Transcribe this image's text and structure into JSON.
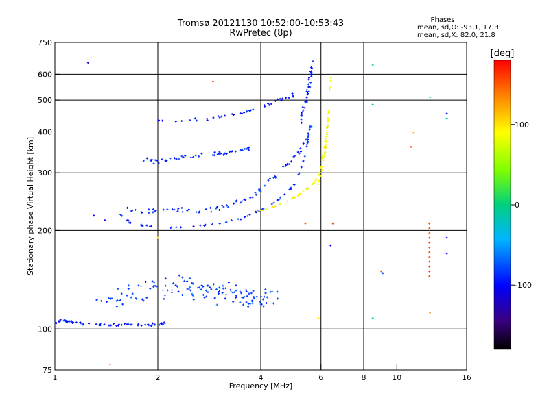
{
  "chart_data": {
    "type": "scatter",
    "title": "Tromsø 20121130 10:52:00-10:53:43",
    "subtitle": "RwPretec (8p)",
    "xlabel": "Frequency [MHz]",
    "ylabel": "Stationary phase Virtual Height [km]",
    "x_scale": "log",
    "y_scale": "log",
    "xlim": [
      1,
      16
    ],
    "ylim": [
      75,
      750
    ],
    "x_ticks": [
      1,
      2,
      4,
      6,
      8,
      10,
      16
    ],
    "x_tick_labels": [
      "1",
      "2",
      "4",
      "6",
      "8",
      "10",
      "16"
    ],
    "x_gridlines": [
      2,
      4,
      6,
      8
    ],
    "y_ticks": [
      75,
      100,
      200,
      300,
      400,
      500,
      600,
      750
    ],
    "y_tick_labels": [
      "75",
      "100",
      "200",
      "300",
      "400",
      "500",
      "600",
      "750"
    ],
    "y_gridlines": [
      100,
      200,
      300,
      400,
      500,
      600
    ],
    "grid": true,
    "colorbar": {
      "label": "[deg]",
      "range": [
        -180,
        180
      ],
      "ticks": [
        100,
        0,
        -100
      ],
      "tick_labels": [
        "100",
        "0",
        "-100"
      ],
      "colormap": "rainbow"
    },
    "stats": {
      "heading": "Phases",
      "line1": "mean, sd,O: -93.1, 17.3",
      "line2": "mean, sd,X:  82.0, 21.8"
    },
    "traces": [
      {
        "name": "",
        "phase": -95,
        "jitter": 0.006,
        "density": 60,
        "points": [
          [
            1.0,
            104
          ],
          [
            1.05,
            107
          ],
          [
            1.1,
            105
          ],
          [
            1.2,
            104
          ],
          [
            1.4,
            103
          ],
          [
            1.6,
            103
          ],
          [
            1.8,
            103
          ],
          [
            2.0,
            103
          ],
          [
            2.1,
            104
          ]
        ]
      },
      {
        "name": "",
        "phase": -90,
        "jitter": 0.004,
        "density": 70,
        "points": [
          [
            1.55,
            224
          ],
          [
            1.65,
            212
          ],
          [
            1.8,
            207
          ],
          [
            2.0,
            205
          ],
          [
            2.4,
            205
          ],
          [
            2.8,
            208
          ],
          [
            3.2,
            213
          ],
          [
            3.6,
            219
          ],
          [
            3.9,
            228
          ],
          [
            4.2,
            236
          ],
          [
            4.5,
            248
          ],
          [
            4.8,
            262
          ],
          [
            5.0,
            275
          ],
          [
            5.2,
            300
          ],
          [
            5.4,
            340
          ],
          [
            5.5,
            380
          ],
          [
            5.6,
            430
          ]
        ]
      },
      {
        "name": "",
        "phase": -88,
        "jitter": 0.012,
        "density": 80,
        "points": [
          [
            1.6,
            232
          ],
          [
            1.8,
            227
          ],
          [
            2.0,
            230
          ],
          [
            2.3,
            232
          ],
          [
            2.6,
            228
          ],
          [
            2.9,
            232
          ],
          [
            3.2,
            238
          ],
          [
            3.5,
            245
          ],
          [
            3.8,
            255
          ],
          [
            4.1,
            275
          ],
          [
            4.5,
            300
          ],
          [
            4.9,
            325
          ],
          [
            5.2,
            350
          ],
          [
            5.5,
            390
          ],
          [
            5.7,
            440
          ]
        ]
      },
      {
        "name": "",
        "phase": -90,
        "jitter": 0.012,
        "density": 55,
        "points": [
          [
            1.8,
            330
          ],
          [
            2.0,
            326
          ],
          [
            2.3,
            332
          ],
          [
            2.7,
            340
          ],
          [
            3.1,
            342
          ],
          [
            3.4,
            350
          ],
          [
            3.7,
            356
          ]
        ]
      },
      {
        "name": "",
        "phase": -95,
        "jitter": 0.008,
        "density": 40,
        "points": [
          [
            2.0,
            432
          ],
          [
            2.4,
            432
          ],
          [
            2.8,
            438
          ],
          [
            3.2,
            450
          ],
          [
            3.6,
            460
          ],
          [
            3.9,
            472
          ],
          [
            4.3,
            490
          ],
          [
            4.7,
            505
          ],
          [
            5.0,
            520
          ]
        ]
      },
      {
        "name": "",
        "phase": -92,
        "jitter": 0.02,
        "density": 40,
        "points": [
          [
            5.2,
            430
          ],
          [
            5.4,
            480
          ],
          [
            5.5,
            540
          ],
          [
            5.6,
            600
          ],
          [
            5.65,
            640
          ]
        ]
      },
      {
        "name": "",
        "phase": 90,
        "jitter": 0.004,
        "density": 55,
        "points": [
          [
            3.9,
            228
          ],
          [
            4.2,
            233
          ],
          [
            4.6,
            242
          ],
          [
            5.0,
            252
          ],
          [
            5.4,
            265
          ],
          [
            5.7,
            278
          ],
          [
            5.9,
            295
          ],
          [
            6.1,
            325
          ],
          [
            6.2,
            360
          ],
          [
            6.25,
            400
          ],
          [
            6.3,
            450
          ]
        ]
      },
      {
        "name": "",
        "phase": 85,
        "jitter": 0.015,
        "density": 30,
        "points": [
          [
            5.9,
            270
          ],
          [
            6.0,
            300
          ],
          [
            6.1,
            340
          ],
          [
            6.2,
            380
          ],
          [
            6.3,
            430
          ],
          [
            6.35,
            500
          ],
          [
            6.4,
            620
          ]
        ]
      },
      {
        "name": "",
        "phase": -80,
        "jitter": 0.05,
        "density": 140,
        "points": [
          [
            1.3,
            120
          ],
          [
            1.6,
            125
          ],
          [
            1.9,
            130
          ],
          [
            2.2,
            135
          ],
          [
            2.5,
            133
          ],
          [
            2.8,
            130
          ],
          [
            3.1,
            130
          ],
          [
            3.4,
            128
          ],
          [
            3.7,
            126
          ],
          [
            4.0,
            125
          ],
          [
            4.5,
            128
          ]
        ]
      }
    ],
    "scatter_points": [
      {
        "x": 1.25,
        "y": 650,
        "phase": -120
      },
      {
        "x": 1.3,
        "y": 222,
        "phase": -105
      },
      {
        "x": 1.4,
        "y": 215,
        "phase": -105
      },
      {
        "x": 1.45,
        "y": 78,
        "phase": 160
      },
      {
        "x": 2.9,
        "y": 570,
        "phase": 170
      },
      {
        "x": 2.0,
        "y": 190,
        "phase": 100
      },
      {
        "x": 5.4,
        "y": 210,
        "phase": 160
      },
      {
        "x": 6.5,
        "y": 210,
        "phase": 160
      },
      {
        "x": 6.4,
        "y": 180,
        "phase": -100
      },
      {
        "x": 5.9,
        "y": 108,
        "phase": 100
      },
      {
        "x": 8.5,
        "y": 640,
        "phase": -10
      },
      {
        "x": 8.5,
        "y": 485,
        "phase": -20
      },
      {
        "x": 8.5,
        "y": 108,
        "phase": -10
      },
      {
        "x": 9.0,
        "y": 150,
        "phase": 150
      },
      {
        "x": 9.1,
        "y": 148,
        "phase": -80
      },
      {
        "x": 11.0,
        "y": 360,
        "phase": 160
      },
      {
        "x": 11.2,
        "y": 398,
        "phase": 110
      },
      {
        "x": 12.5,
        "y": 510,
        "phase": -10
      },
      {
        "x": 12.5,
        "y": 112,
        "phase": 130
      },
      {
        "x": 14.0,
        "y": 455,
        "phase": -100
      },
      {
        "x": 14.0,
        "y": 440,
        "phase": -10
      },
      {
        "x": 14.0,
        "y": 190,
        "phase": -100
      },
      {
        "x": 14.0,
        "y": 170,
        "phase": -100
      }
    ],
    "vertical_streak": {
      "x": 12.45,
      "y_from": 145,
      "y_to": 210,
      "phase": 155,
      "count": 12
    }
  }
}
